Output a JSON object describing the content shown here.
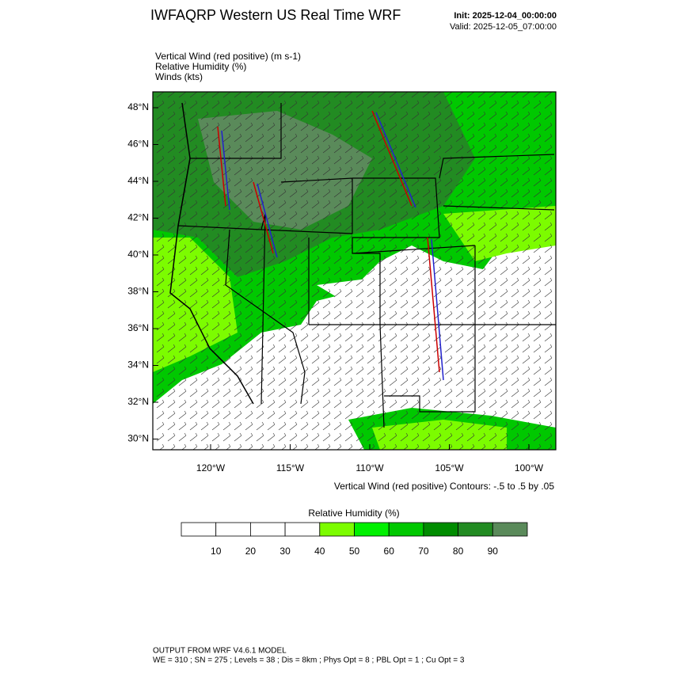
{
  "header": {
    "title": "IWFAQRP Western US Real Time WRF",
    "init": "Init: 2025-12-04_00:00:00",
    "valid": "Valid: 2025-12-05_07:00:00"
  },
  "fields": [
    "Vertical Wind (red positive)   (m s-1)",
    "Relative Humidity   (%)",
    "Winds   (kts)"
  ],
  "map": {
    "lat_labels": [
      "48°N",
      "46°N",
      "44°N",
      "42°N",
      "40°N",
      "38°N",
      "36°N",
      "34°N",
      "32°N",
      "30°N"
    ],
    "lon_labels": [
      "120°W",
      "115°W",
      "110°W",
      "105°W",
      "100°W"
    ],
    "contour_note": "Vertical Wind (red positive) Contours: -.5 to .5 by .05"
  },
  "colorbar": {
    "title": "Relative Humidity  (%)",
    "labels": [
      "10",
      "20",
      "30",
      "40",
      "50",
      "60",
      "70",
      "80",
      "90"
    ],
    "colors": [
      "#ffffff",
      "#ffffff",
      "#ffffff",
      "#ffffff",
      "#7cfc00",
      "#00f000",
      "#00c800",
      "#008c00",
      "#228b22",
      "#5a8a5a"
    ]
  },
  "footer": {
    "line1": "OUTPUT FROM WRF V4.6.1 MODEL",
    "line2": "WE = 310 ; SN = 275 ; Levels = 38 ; Dis = 8km ; Phys Opt = 8 ; PBL Opt = 1 ; Cu Opt = 3"
  }
}
